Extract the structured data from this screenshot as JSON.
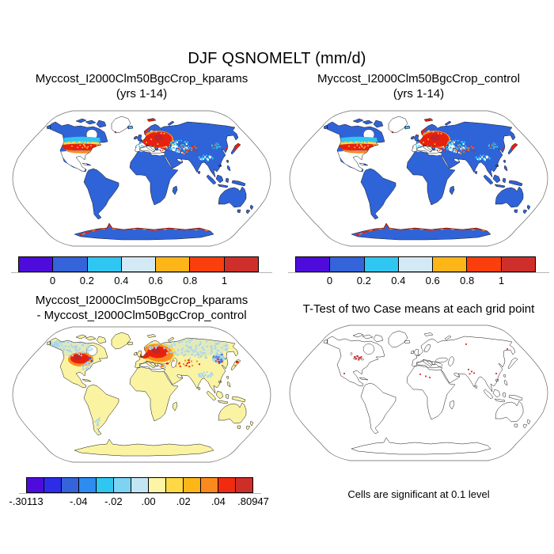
{
  "figure": {
    "title": "DJF QSNOMELT (mm/d)"
  },
  "panels": {
    "top_left": {
      "title_line1": "Myccost_I2000Clm50BgcCrop_kparams",
      "title_line2": "(yrs 1-14)"
    },
    "top_right": {
      "title_line1": "Myccost_I2000Clm50BgcCrop_control",
      "title_line2": "(yrs 1-14)"
    },
    "bottom_left": {
      "title_line1": "Myccost_I2000Clm50BgcCrop_kparams",
      "title_line2": "- Myccost_I2000Clm50BgcCrop_control"
    },
    "bottom_right": {
      "title": "T-Test of two Case means at each grid point",
      "caption": "Cells are significant at 0.1 level"
    }
  },
  "colorbars": {
    "mean": {
      "colors": [
        "#4e0cdc",
        "#3563d9",
        "#2fc6f2",
        "#d3eaf6",
        "#feb517",
        "#fa3e0d",
        "#cf2f2a"
      ],
      "ticks": [
        {
          "label": "0",
          "pos": 0.1429
        },
        {
          "label": "0.2",
          "pos": 0.2857
        },
        {
          "label": "0.4",
          "pos": 0.4286
        },
        {
          "label": "0.6",
          "pos": 0.5714
        },
        {
          "label": "0.8",
          "pos": 0.7143
        },
        {
          "label": "1",
          "pos": 0.8571
        }
      ]
    },
    "diff": {
      "colors": [
        "#4e0cdc",
        "#2d2de8",
        "#3563d9",
        "#2e8bf0",
        "#2fc6f2",
        "#7cd4f2",
        "#c3e6f5",
        "#fdf5a6",
        "#fed945",
        "#feb517",
        "#fb8a1e",
        "#f22b10",
        "#cd2f28"
      ],
      "ticks": [
        {
          "label": "-.30113",
          "pos": 0
        },
        {
          "label": "-.04",
          "pos": 0.2308
        },
        {
          "label": "-.02",
          "pos": 0.3846
        },
        {
          "label": ".00",
          "pos": 0.5385
        },
        {
          "label": ".02",
          "pos": 0.6923
        },
        {
          "label": ".04",
          "pos": 0.8462
        },
        {
          "label": ".80947",
          "pos": 1
        }
      ]
    }
  },
  "chart_data": [
    {
      "type": "heatmap",
      "title": "Myccost_I2000Clm50BgcCrop_kparams (yrs 1-14)",
      "variable": "QSNOMELT",
      "season": "DJF",
      "units": "mm/d",
      "projection": "Robinson world map, ocean masked white",
      "colorbar_levels": [
        0,
        0.2,
        0.4,
        0.6,
        0.8,
        1
      ],
      "colorbar_colors": [
        "#4e0cdc",
        "#3563d9",
        "#2fc6f2",
        "#d3eaf6",
        "#feb517",
        "#fa3e0d",
        "#cf2f2a"
      ],
      "pattern": "Most land in 0-0.2 bin (blue); >1 mm/d (red) band across northern US and New England, central/eastern Europe into western Russia, scattered red/orange through central Asia, Korea and Japan, Svalbard and along the Antarctic coastline; 0.2-0.6 (cyan/pale) fringes north of the red bands and over Tibet; southern US, Mexico and Mediterranean Europe near-white"
    },
    {
      "type": "heatmap",
      "title": "Myccost_I2000Clm50BgcCrop_control (yrs 1-14)",
      "variable": "QSNOMELT",
      "season": "DJF",
      "units": "mm/d",
      "projection": "Robinson world map, ocean masked white",
      "colorbar_levels": [
        0,
        0.2,
        0.4,
        0.6,
        0.8,
        1
      ],
      "colorbar_colors": [
        "#4e0cdc",
        "#3563d9",
        "#2fc6f2",
        "#d3eaf6",
        "#feb517",
        "#fa3e0d",
        "#cf2f2a"
      ],
      "pattern": "Visually identical to kparams case: blue land background with red snowmelt bands over northern US, Europe, central Asia, Japan and Antarctic coast"
    },
    {
      "type": "heatmap",
      "title": "Myccost_I2000Clm50BgcCrop_kparams - Myccost_I2000Clm50BgcCrop_control",
      "variable": "QSNOMELT difference",
      "season": "DJF",
      "units": "mm/d",
      "projection": "Robinson world map, ocean masked white",
      "colorbar_min": -0.30113,
      "colorbar_max": 0.80947,
      "colorbar_labeled_levels": [
        -0.30113,
        -0.04,
        -0.02,
        0.0,
        0.02,
        0.04,
        0.80947
      ],
      "colorbar_colors": [
        "#4e0cdc",
        "#2d2de8",
        "#3563d9",
        "#2e8bf0",
        "#2fc6f2",
        "#7cd4f2",
        "#c3e6f5",
        "#fdf5a6",
        "#fed945",
        "#feb517",
        "#fb8a1e",
        "#f22b10",
        "#cd2f28"
      ],
      "pattern": "Land mostly near zero (pale yellow); strong positive (red/orange) blobs over Great Lakes/NE US and eastern Europe-western Russia; scattered red/orange dots in central Asia and Japan; light-blue negative speckle across Canada, Alaska, Scandinavia, Siberia, Tibet, NE China and Patagonia; few dark-blue cells near New England"
    },
    {
      "type": "heatmap",
      "title": "T-Test of two Case means at each grid point",
      "projection": "Robinson world map outline, land white",
      "note": "Cells are significant at 0.1 level",
      "pattern": "Sparse significant cells (red): cluster near the Great Lakes, single cells in Mexico, the Sahara, NW India/Pakistan, Siberia, southern China and NE Asia"
    }
  ]
}
